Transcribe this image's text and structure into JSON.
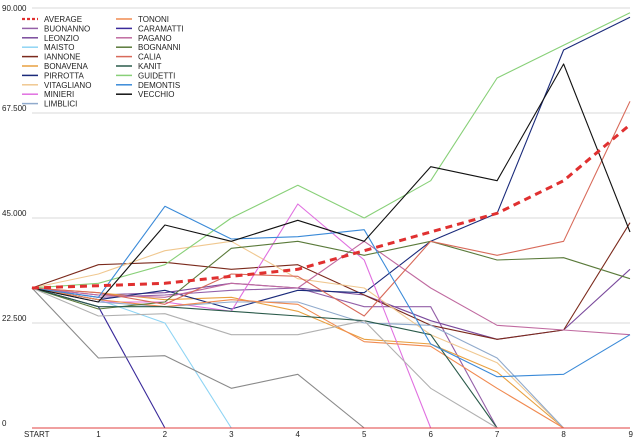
{
  "chart_data": {
    "type": "line",
    "title": "",
    "xlabel": "",
    "ylabel": "",
    "categories": [
      "START",
      "1",
      "2",
      "3",
      "4",
      "5",
      "6",
      "7",
      "8",
      "9"
    ],
    "ylim": [
      0,
      90000
    ],
    "yticks": [
      "0",
      "22.500",
      "45.000",
      "67.500",
      "90.000"
    ],
    "ytick_values": [
      0,
      22500,
      45000,
      67500,
      90000
    ],
    "grid": true,
    "legend_position": "top-left",
    "series": [
      {
        "name": "AVERAGE",
        "color": "#e03030",
        "dashed": true,
        "values": [
          30000,
          30500,
          31000,
          32500,
          34000,
          38000,
          42000,
          46000,
          53000,
          65000
        ]
      },
      {
        "name": "BUONANNO",
        "color": "#9460a8",
        "values": [
          30000,
          28000,
          28500,
          29500,
          30000,
          26000,
          26000,
          0,
          0,
          0
        ]
      },
      {
        "name": "LEONZIO",
        "color": "#7a4a9c",
        "values": [
          30000,
          28500,
          29000,
          31000,
          30000,
          28500,
          23000,
          19000,
          21000,
          34000
        ]
      },
      {
        "name": "MAISTO",
        "color": "#8ed4f4",
        "values": [
          30000,
          27500,
          22500,
          0,
          0,
          0,
          0,
          0,
          0,
          0
        ]
      },
      {
        "name": "IANNONE",
        "color": "#7b2a1c",
        "values": [
          30000,
          35000,
          35500,
          34000,
          35000,
          28500,
          22000,
          19000,
          21000,
          44000
        ]
      },
      {
        "name": "BONAVENA",
        "color": "#e8a040",
        "values": [
          30000,
          29000,
          27500,
          28000,
          25000,
          19000,
          18000,
          12000,
          0,
          0
        ]
      },
      {
        "name": "PIRROTTA",
        "color": "#1a2a7a",
        "values": [
          30000,
          27500,
          29500,
          25500,
          29500,
          29000,
          40000,
          46000,
          81000,
          88000
        ]
      },
      {
        "name": "VITAGLIANO",
        "color": "#f0c890",
        "values": [
          30000,
          33000,
          38000,
          40000,
          32000,
          30000,
          20000,
          14000,
          0,
          0
        ]
      },
      {
        "name": "MINIERI",
        "color": "#e070e0",
        "values": [
          30000,
          27000,
          27000,
          25000,
          48000,
          36000,
          0,
          0,
          0,
          0
        ]
      },
      {
        "name": "LIMBLICI",
        "color": "#90aacc",
        "values": [
          30000,
          27000,
          26000,
          27000,
          27000,
          22500,
          22000,
          15000,
          0,
          0
        ]
      },
      {
        "name": "TONONI",
        "color": "#f08a50",
        "values": [
          30000,
          27500,
          26000,
          27500,
          26500,
          18500,
          17500,
          8500,
          0,
          0
        ]
      },
      {
        "name": "CARAMATTI",
        "color": "#3a2a9a",
        "values": [
          30000,
          26000,
          0,
          0,
          0,
          0,
          0,
          0,
          0,
          0
        ]
      },
      {
        "name": "PAGANO",
        "color": "#c06aa0",
        "values": [
          30000,
          28500,
          28000,
          31000,
          30000,
          40000,
          30000,
          22000,
          21000,
          20000
        ]
      },
      {
        "name": "BOGNANNI",
        "color": "#5a7a3a",
        "values": [
          30000,
          25500,
          27000,
          38500,
          40000,
          37000,
          40000,
          36000,
          36500,
          32000
        ]
      },
      {
        "name": "CALIA",
        "color": "#d86a5a",
        "values": [
          30000,
          29000,
          26500,
          33000,
          32500,
          24000,
          40000,
          37000,
          40000,
          70000
        ]
      },
      {
        "name": "KANIT",
        "color": "#2a5a4a",
        "values": [
          30000,
          26000,
          26000,
          25000,
          24000,
          23000,
          20000,
          0,
          0,
          0
        ]
      },
      {
        "name": "GUIDETTI",
        "color": "#88d078",
        "values": [
          30000,
          31000,
          35000,
          45000,
          52000,
          45000,
          53000,
          75000,
          82000,
          89000
        ]
      },
      {
        "name": "DEMONTIS",
        "color": "#3a8ad8",
        "values": [
          30000,
          28000,
          47500,
          40500,
          41000,
          42500,
          18000,
          11000,
          11500,
          20000
        ]
      },
      {
        "name": "VECCHIO",
        "color": "#111111",
        "values": [
          30000,
          27000,
          43500,
          40000,
          44500,
          40000,
          56000,
          53000,
          78000,
          42000
        ]
      },
      {
        "name": "",
        "color": "#8a8a8a",
        "values": [
          30000,
          15000,
          15500,
          8500,
          11500,
          0,
          0,
          0,
          0,
          0
        ]
      },
      {
        "name": "",
        "color": "#b0b0b0",
        "values": [
          30000,
          24000,
          24500,
          20000,
          20000,
          23000,
          8500,
          0,
          0,
          0
        ]
      },
      {
        "name": "",
        "color": "#e04040",
        "values": [
          0,
          0,
          0,
          0,
          0,
          0,
          0,
          0,
          0,
          0
        ]
      }
    ]
  }
}
